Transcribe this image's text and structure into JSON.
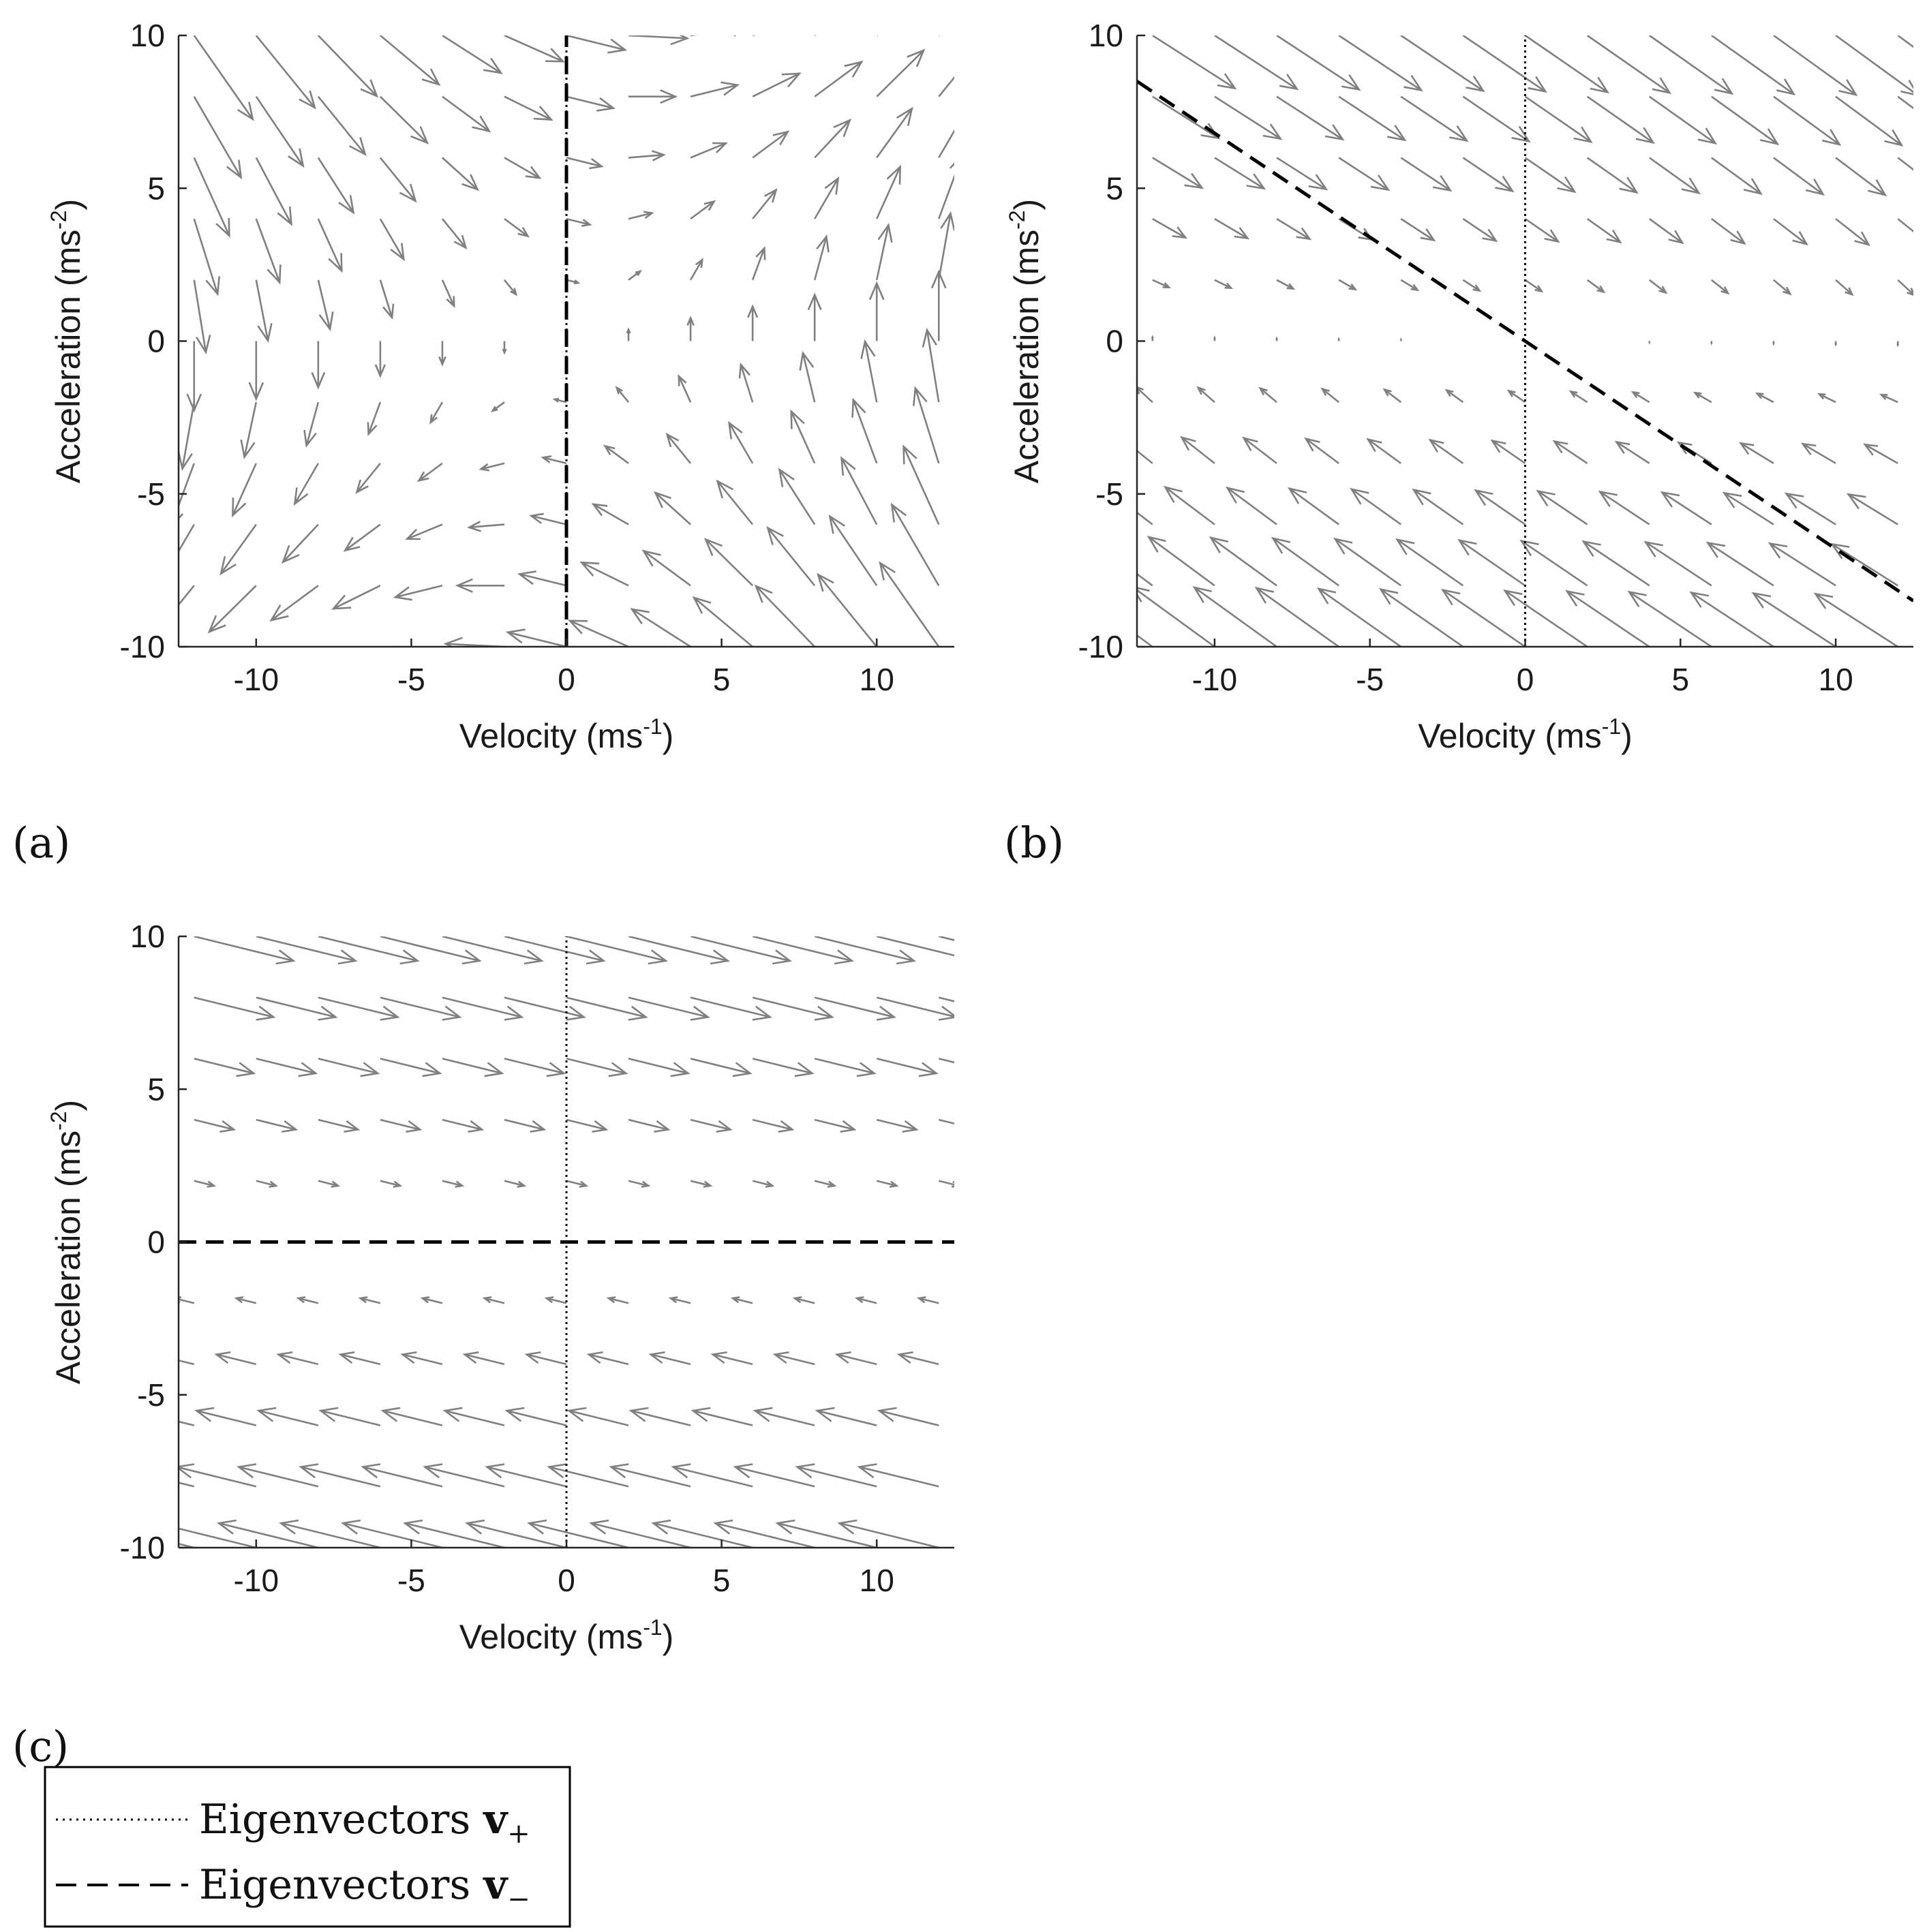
{
  "chart_data": [
    {
      "type": "quiver",
      "panel_label": "(a)",
      "xlabel": "Velocity (ms",
      "xlabel_sup": "-1",
      "xlabel_close": ")",
      "ylabel": "Acceleration (ms",
      "ylabel_sup": "-2",
      "ylabel_close": ")",
      "xlim": [
        -12.5,
        12.5
      ],
      "ylim": [
        -10,
        10
      ],
      "xticks": [
        -10,
        -5,
        0,
        5,
        10
      ],
      "yticks": [
        -10,
        -5,
        0,
        5,
        10
      ],
      "grid": false,
      "field": {
        "a": 0.0,
        "b": -0.25,
        "c": 1.0
      },
      "x_step": 2,
      "y_step": 2,
      "eigenvectors": {
        "plus": {
          "slope": "vertical"
        },
        "minus": {
          "slope": "vertical"
        }
      }
    },
    {
      "type": "quiver",
      "panel_label": "(b)",
      "xlabel": "Velocity (ms",
      "xlabel_sup": "-1",
      "xlabel_close": ")",
      "ylabel": "Acceleration (ms",
      "ylabel_sup": "-2",
      "ylabel_close": ")",
      "xlim": [
        -12.5,
        12.5
      ],
      "ylim": [
        -10,
        10
      ],
      "xticks": [
        -10,
        -5,
        0,
        5,
        10
      ],
      "yticks": [
        -10,
        -5,
        0,
        5,
        10
      ],
      "grid": false,
      "field": {
        "a": -0.04,
        "b": -0.7,
        "c": 0.0
      },
      "x_step": 2,
      "y_step": 2,
      "eigenvectors": {
        "plus": {
          "slope": "vertical"
        },
        "minus": {
          "slope": -0.68
        }
      }
    },
    {
      "type": "quiver",
      "panel_label": "(c)",
      "xlabel": "Velocity (ms",
      "xlabel_sup": "-1",
      "xlabel_close": ")",
      "ylabel": "Acceleration (ms",
      "ylabel_sup": "-2",
      "ylabel_close": ")",
      "xlim": [
        -12.5,
        12.5
      ],
      "ylim": [
        -10,
        10
      ],
      "xticks": [
        -10,
        -5,
        0,
        5,
        10
      ],
      "yticks": [
        -10,
        -5,
        0,
        5,
        10
      ],
      "grid": false,
      "field": {
        "a": 0.0,
        "b": -0.25,
        "c": 0.0
      },
      "x_step": 2,
      "y_step": 2,
      "eigenvectors": {
        "plus": {
          "slope": "vertical"
        },
        "minus": {
          "slope": 0
        }
      }
    }
  ],
  "legend": {
    "entries": [
      {
        "style": "dotted",
        "text": "Eigenvectors ",
        "symbol": "v",
        "sub": "+"
      },
      {
        "style": "dashed",
        "text": "Eigenvectors ",
        "symbol": "v",
        "sub": "−"
      }
    ]
  },
  "colors": {
    "arrow": "#808080",
    "line": "#000000",
    "axis": "#262626"
  }
}
